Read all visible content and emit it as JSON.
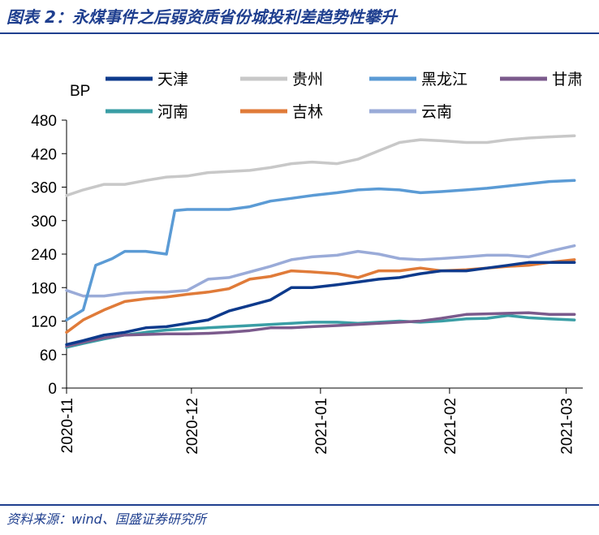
{
  "header": {
    "title": "图表 2：永煤事件之后弱资质省份城投利差趋势性攀升"
  },
  "footer": {
    "source": "资料来源：wind、国盛证券研究所"
  },
  "chart_data": {
    "type": "line",
    "unit_label": "BP",
    "ylim": [
      0,
      480
    ],
    "yticks": [
      "0",
      "60",
      "120",
      "180",
      "240",
      "300",
      "360",
      "420",
      "480"
    ],
    "xlim": [
      "2020-11-01",
      "2021-03-05"
    ],
    "xticks": [
      {
        "label": "2020-11",
        "date": "2020-11-01"
      },
      {
        "label": "2020-12",
        "date": "2020-12-01"
      },
      {
        "label": "2021-01",
        "date": "2021-01-01"
      },
      {
        "label": "2021-02",
        "date": "2021-02-01"
      },
      {
        "label": "2021-03",
        "date": "2021-03-01"
      }
    ],
    "grid": false,
    "legend_position": "top",
    "series": [
      {
        "name": "天津",
        "color": "#0d3a8c",
        "points": [
          [
            "2020-11-01",
            78
          ],
          [
            "2020-11-05",
            85
          ],
          [
            "2020-11-10",
            95
          ],
          [
            "2020-11-15",
            100
          ],
          [
            "2020-11-20",
            108
          ],
          [
            "2020-11-25",
            110
          ],
          [
            "2020-11-30",
            116
          ],
          [
            "2020-12-05",
            122
          ],
          [
            "2020-12-10",
            138
          ],
          [
            "2020-12-15",
            148
          ],
          [
            "2020-12-20",
            158
          ],
          [
            "2020-12-25",
            180
          ],
          [
            "2020-12-30",
            180
          ],
          [
            "2021-01-05",
            185
          ],
          [
            "2021-01-10",
            190
          ],
          [
            "2021-01-15",
            195
          ],
          [
            "2021-01-20",
            198
          ],
          [
            "2021-01-25",
            205
          ],
          [
            "2021-01-30",
            210
          ],
          [
            "2021-02-05",
            210
          ],
          [
            "2021-02-10",
            215
          ],
          [
            "2021-02-15",
            220
          ],
          [
            "2021-02-20",
            225
          ],
          [
            "2021-02-25",
            225
          ],
          [
            "2021-03-03",
            225
          ]
        ]
      },
      {
        "name": "贵州",
        "color": "#c8c8c8",
        "points": [
          [
            "2020-11-01",
            345
          ],
          [
            "2020-11-05",
            355
          ],
          [
            "2020-11-10",
            365
          ],
          [
            "2020-11-15",
            365
          ],
          [
            "2020-11-20",
            372
          ],
          [
            "2020-11-25",
            378
          ],
          [
            "2020-11-30",
            380
          ],
          [
            "2020-12-05",
            386
          ],
          [
            "2020-12-10",
            388
          ],
          [
            "2020-12-15",
            390
          ],
          [
            "2020-12-20",
            395
          ],
          [
            "2020-12-25",
            402
          ],
          [
            "2020-12-30",
            405
          ],
          [
            "2021-01-05",
            402
          ],
          [
            "2021-01-10",
            410
          ],
          [
            "2021-01-15",
            425
          ],
          [
            "2021-01-20",
            440
          ],
          [
            "2021-01-25",
            445
          ],
          [
            "2021-01-30",
            443
          ],
          [
            "2021-02-05",
            440
          ],
          [
            "2021-02-10",
            440
          ],
          [
            "2021-02-15",
            445
          ],
          [
            "2021-02-20",
            448
          ],
          [
            "2021-02-25",
            450
          ],
          [
            "2021-03-03",
            452
          ]
        ]
      },
      {
        "name": "黑龙江",
        "color": "#5b9bd5",
        "points": [
          [
            "2020-11-01",
            122
          ],
          [
            "2020-11-05",
            140
          ],
          [
            "2020-11-08",
            220
          ],
          [
            "2020-11-12",
            232
          ],
          [
            "2020-11-15",
            245
          ],
          [
            "2020-11-20",
            245
          ],
          [
            "2020-11-25",
            240
          ],
          [
            "2020-11-27",
            318
          ],
          [
            "2020-11-30",
            320
          ],
          [
            "2020-12-05",
            320
          ],
          [
            "2020-12-10",
            320
          ],
          [
            "2020-12-15",
            325
          ],
          [
            "2020-12-20",
            335
          ],
          [
            "2020-12-25",
            340
          ],
          [
            "2020-12-30",
            345
          ],
          [
            "2021-01-05",
            350
          ],
          [
            "2021-01-10",
            355
          ],
          [
            "2021-01-15",
            357
          ],
          [
            "2021-01-20",
            355
          ],
          [
            "2021-01-25",
            350
          ],
          [
            "2021-01-30",
            352
          ],
          [
            "2021-02-05",
            355
          ],
          [
            "2021-02-10",
            358
          ],
          [
            "2021-02-15",
            362
          ],
          [
            "2021-02-20",
            366
          ],
          [
            "2021-02-25",
            370
          ],
          [
            "2021-03-03",
            372
          ]
        ]
      },
      {
        "name": "甘肃",
        "color": "#7b5a8c",
        "points": [
          [
            "2020-11-01",
            75
          ],
          [
            "2020-11-05",
            82
          ],
          [
            "2020-11-10",
            90
          ],
          [
            "2020-11-15",
            95
          ],
          [
            "2020-11-20",
            96
          ],
          [
            "2020-11-25",
            97
          ],
          [
            "2020-11-30",
            97
          ],
          [
            "2020-12-05",
            98
          ],
          [
            "2020-12-10",
            100
          ],
          [
            "2020-12-15",
            103
          ],
          [
            "2020-12-20",
            108
          ],
          [
            "2020-12-25",
            108
          ],
          [
            "2020-12-30",
            110
          ],
          [
            "2021-01-05",
            112
          ],
          [
            "2021-01-10",
            114
          ],
          [
            "2021-01-15",
            116
          ],
          [
            "2021-01-20",
            118
          ],
          [
            "2021-01-25",
            120
          ],
          [
            "2021-01-30",
            125
          ],
          [
            "2021-02-05",
            132
          ],
          [
            "2021-02-10",
            133
          ],
          [
            "2021-02-15",
            134
          ],
          [
            "2021-02-20",
            135
          ],
          [
            "2021-02-25",
            132
          ],
          [
            "2021-03-03",
            132
          ]
        ]
      },
      {
        "name": "河南",
        "color": "#3a9ea5",
        "points": [
          [
            "2020-11-01",
            73
          ],
          [
            "2020-11-05",
            80
          ],
          [
            "2020-11-10",
            88
          ],
          [
            "2020-11-15",
            95
          ],
          [
            "2020-11-20",
            100
          ],
          [
            "2020-11-25",
            104
          ],
          [
            "2020-11-30",
            106
          ],
          [
            "2020-12-05",
            108
          ],
          [
            "2020-12-10",
            110
          ],
          [
            "2020-12-15",
            112
          ],
          [
            "2020-12-20",
            114
          ],
          [
            "2020-12-25",
            116
          ],
          [
            "2020-12-30",
            118
          ],
          [
            "2021-01-05",
            118
          ],
          [
            "2021-01-10",
            116
          ],
          [
            "2021-01-15",
            118
          ],
          [
            "2021-01-20",
            120
          ],
          [
            "2021-01-25",
            118
          ],
          [
            "2021-01-30",
            120
          ],
          [
            "2021-02-05",
            124
          ],
          [
            "2021-02-10",
            125
          ],
          [
            "2021-02-15",
            130
          ],
          [
            "2021-02-20",
            126
          ],
          [
            "2021-02-25",
            124
          ],
          [
            "2021-03-03",
            122
          ]
        ]
      },
      {
        "name": "吉林",
        "color": "#e07b39",
        "points": [
          [
            "2020-11-01",
            100
          ],
          [
            "2020-11-05",
            122
          ],
          [
            "2020-11-10",
            140
          ],
          [
            "2020-11-15",
            155
          ],
          [
            "2020-11-20",
            160
          ],
          [
            "2020-11-25",
            163
          ],
          [
            "2020-11-30",
            168
          ],
          [
            "2020-12-05",
            172
          ],
          [
            "2020-12-10",
            178
          ],
          [
            "2020-12-15",
            195
          ],
          [
            "2020-12-20",
            200
          ],
          [
            "2020-12-25",
            210
          ],
          [
            "2020-12-30",
            208
          ],
          [
            "2021-01-05",
            205
          ],
          [
            "2021-01-10",
            198
          ],
          [
            "2021-01-15",
            210
          ],
          [
            "2021-01-20",
            210
          ],
          [
            "2021-01-25",
            215
          ],
          [
            "2021-01-30",
            210
          ],
          [
            "2021-02-05",
            212
          ],
          [
            "2021-02-10",
            215
          ],
          [
            "2021-02-15",
            218
          ],
          [
            "2021-02-20",
            220
          ],
          [
            "2021-02-25",
            225
          ],
          [
            "2021-03-03",
            230
          ]
        ]
      },
      {
        "name": "云南",
        "color": "#9aabd8",
        "points": [
          [
            "2020-11-01",
            175
          ],
          [
            "2020-11-05",
            165
          ],
          [
            "2020-11-10",
            165
          ],
          [
            "2020-11-15",
            170
          ],
          [
            "2020-11-20",
            172
          ],
          [
            "2020-11-25",
            172
          ],
          [
            "2020-11-30",
            175
          ],
          [
            "2020-12-05",
            195
          ],
          [
            "2020-12-10",
            198
          ],
          [
            "2020-12-15",
            208
          ],
          [
            "2020-12-20",
            218
          ],
          [
            "2020-12-25",
            230
          ],
          [
            "2020-12-30",
            235
          ],
          [
            "2021-01-05",
            238
          ],
          [
            "2021-01-10",
            245
          ],
          [
            "2021-01-15",
            240
          ],
          [
            "2021-01-20",
            232
          ],
          [
            "2021-01-25",
            230
          ],
          [
            "2021-01-30",
            232
          ],
          [
            "2021-02-05",
            235
          ],
          [
            "2021-02-10",
            238
          ],
          [
            "2021-02-15",
            238
          ],
          [
            "2021-02-20",
            235
          ],
          [
            "2021-02-25",
            245
          ],
          [
            "2021-03-03",
            255
          ]
        ]
      }
    ]
  }
}
